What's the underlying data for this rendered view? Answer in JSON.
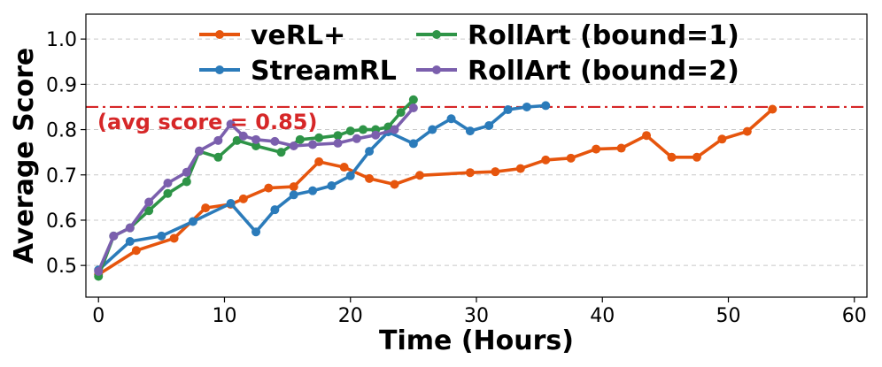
{
  "chart_data": {
    "type": "line",
    "xlabel": "Time (Hours)",
    "ylabel": "Average Score",
    "xlim": [
      -1,
      61
    ],
    "ylim": [
      0.43,
      1.055
    ],
    "xticks": [
      0,
      10,
      20,
      30,
      40,
      50,
      60
    ],
    "yticks": [
      0.5,
      0.6,
      0.7,
      0.8,
      0.9,
      1.0
    ],
    "xtick_labels": [
      "0",
      "10",
      "20",
      "30",
      "40",
      "50",
      "60"
    ],
    "ytick_labels": [
      "0.5",
      "0.6",
      "0.7",
      "0.8",
      "0.9",
      "1.0"
    ],
    "grid": "horizontal dashed",
    "legend_position": "top",
    "reference_line": {
      "y": 0.85,
      "color": "#d62728",
      "label": "(avg score = 0.85)"
    },
    "series": [
      {
        "name": "veRL+",
        "color": "#e6550d",
        "x": [
          0,
          3,
          6,
          8.5,
          10.5,
          11.5,
          13.5,
          15.5,
          17.5,
          19.5,
          21.5,
          23.5,
          25.5,
          29.5,
          31.5,
          33.5,
          35.5,
          37.5,
          39.5,
          41.5,
          43.5,
          45.5,
          47.5,
          49.5,
          51.5,
          53.5
        ],
        "y": [
          0.48,
          0.533,
          0.56,
          0.627,
          0.635,
          0.647,
          0.671,
          0.674,
          0.729,
          0.717,
          0.692,
          0.679,
          0.699,
          0.705,
          0.707,
          0.714,
          0.733,
          0.737,
          0.757,
          0.759,
          0.787,
          0.739,
          0.739,
          0.779,
          0.796,
          0.845
        ]
      },
      {
        "name": "StreamRL",
        "color": "#2b7bba",
        "x": [
          0,
          2.5,
          5,
          7.5,
          10.5,
          12.5,
          14,
          15.5,
          17,
          18.5,
          20,
          21.5,
          23,
          25,
          26.5,
          28,
          29.5,
          31,
          32.5,
          34,
          35.5
        ],
        "y": [
          0.49,
          0.553,
          0.565,
          0.597,
          0.637,
          0.574,
          0.623,
          0.656,
          0.665,
          0.676,
          0.698,
          0.752,
          0.795,
          0.769,
          0.8,
          0.824,
          0.797,
          0.809,
          0.844,
          0.85,
          0.853
        ]
      },
      {
        "name": "RollArt (bound=1)",
        "color": "#2e9447",
        "x": [
          0,
          1.2,
          2.5,
          4,
          5.5,
          7,
          8,
          9.5,
          11,
          12.5,
          14.5,
          16,
          17.5,
          19,
          20,
          21,
          22,
          23,
          24,
          25
        ],
        "y": [
          0.476,
          0.565,
          0.583,
          0.621,
          0.659,
          0.685,
          0.752,
          0.739,
          0.776,
          0.764,
          0.75,
          0.778,
          0.782,
          0.787,
          0.797,
          0.8,
          0.8,
          0.806,
          0.838,
          0.866
        ]
      },
      {
        "name": "RollArt (bound=2)",
        "color": "#7b5fad",
        "x": [
          0,
          1.2,
          2.5,
          4,
          5.5,
          7,
          8,
          9.5,
          10.5,
          11.5,
          12.5,
          14,
          15.5,
          17,
          19,
          20.5,
          22,
          23.5,
          25
        ],
        "y": [
          0.487,
          0.565,
          0.583,
          0.64,
          0.682,
          0.706,
          0.753,
          0.776,
          0.812,
          0.786,
          0.778,
          0.774,
          0.764,
          0.767,
          0.77,
          0.78,
          0.788,
          0.8,
          0.848
        ]
      }
    ]
  }
}
